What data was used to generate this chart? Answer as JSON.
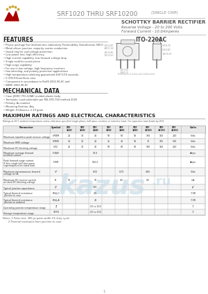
{
  "title_main": "SRF1020 THRU SRF10200",
  "title_sub": "(SINGLE CHIP)",
  "subtitle1": "SCHOTTKY BARRIER RECTIFIER",
  "subtitle2": "Reverse Voltage - 20 to 200 Volts",
  "subtitle3": "Forward Current - 10.0Amperes",
  "package": "ITO-220AC",
  "features_title": "FEATURES",
  "features": [
    "Plastic package has Underwriters Laboratory Flammability Classification 94V-0",
    "Metal silicon junction ,majority carrier conduction",
    "Guard ring for overvoltage protection",
    "Low power loss, high efficiency",
    "High current capability ,low forward voltage drop",
    "Single rectifier construction",
    "High surge capability",
    "For use in low voltage ,high frequency inverters,",
    "free wheeling, and polarity protection applications",
    "High temperature soldering guaranteed 260°C/10 seconds,",
    "0.375(9.5mm)from case",
    "Component in accordance to RoHS 2002-95-EC and",
    "WEEE 2002-96-EC"
  ],
  "mechanical_title": "MECHANICAL DATA",
  "mechanical": [
    "Case: JEDEC ITO-220AC molded plastic body",
    "Terminals: Lead solderable per MIL-STD-750 method 2026",
    "Polarity: As marked",
    "Mounting Position: Any",
    "Weight: 0.08ounce, 2.19 gram"
  ],
  "max_ratings_title": "MAXIMUM RATINGS AND ELECTRICAL CHARACTERISTICS",
  "ratings_note": "Ratings at 25°C ambient temperature unless otherwise specified (single phase, half wave, resistive or inductive load). For capacitive load derate by 20%.",
  "table_col_labels": [
    "SRF\n1020",
    "SRF\n1030",
    "SRF\n1040",
    "SRF\n1050",
    "SRF\n1060",
    "SRF\n1080",
    "SRF\n10100",
    "SRF\n10150",
    "SRF\n10200"
  ],
  "table_rows": [
    [
      "Maximum repetitive peak reverse voltage",
      "VRRM",
      "20",
      "30",
      "40",
      "50",
      "60",
      "80",
      "100",
      "150",
      "200",
      "Volts"
    ],
    [
      "Maximum RMS voltage",
      "VRMS",
      "14",
      "21",
      "28",
      "35",
      "42",
      "56",
      "70",
      "105",
      "140",
      "Volts"
    ],
    [
      "Maximum DC blocking voltage",
      "VDC",
      "20",
      "30",
      "40",
      "50",
      "60",
      "80",
      "100",
      "150",
      "200",
      "Volts"
    ],
    [
      "Maximum average forward\nrectified current",
      "IF(AV)",
      "",
      "",
      "10.0",
      "",
      "",
      "",
      "",
      "",
      "",
      "Amps"
    ],
    [
      "Peak forward surge current\n8.3ms single half sine-wave\nsuperimposed on rated load",
      "IFSM",
      "",
      "",
      "150.0",
      "",
      "",
      "",
      "",
      "",
      "",
      "Amps"
    ],
    [
      "Maximum instantaneous forward\nvoltage at 5A",
      "VF",
      "",
      "",
      "0.55",
      "",
      "0.70",
      "",
      "0.85",
      "",
      "",
      "Volts"
    ],
    [
      "Maximum DC reverse current\nat rated DC blocking voltage",
      "IR",
      "10",
      "",
      "10",
      "",
      "0.5",
      "",
      "0.5",
      "",
      "",
      "mA"
    ],
    [
      "Typical junction capacitance",
      "CJ",
      "",
      "",
      "300",
      "",
      "",
      "",
      "",
      "",
      "",
      "pF"
    ],
    [
      "Typical thermal resistance\njunction to case",
      "RthJ-C",
      "",
      "",
      "2.5",
      "",
      "",
      "",
      "",
      "",
      "",
      "°C/W"
    ],
    [
      "Typical thermal resistance\njunction to ambient",
      "RthJ-A",
      "",
      "",
      "40",
      "",
      "",
      "",
      "",
      "",
      "",
      "°C/W"
    ],
    [
      "Operating junction temperature range",
      "TJ",
      "",
      "",
      "-55 to 150",
      "",
      "",
      "",
      "",
      "",
      "",
      "°C"
    ],
    [
      "Storage temperature range",
      "TSTG",
      "",
      "",
      "-55 to 150",
      "",
      "",
      "",
      "",
      "",
      "",
      "°C"
    ]
  ],
  "notes": [
    "Notes: 1.Pulse test: 300 μs pulse width 1% duty cycle",
    "       2.Thermal resistance from junction to case"
  ],
  "bg_color": "#ffffff",
  "text_color": "#333333",
  "title_gray": "#888888",
  "subtitle_gray": "#666666",
  "logo_red": "#aa0000",
  "logo_gold": "#ccaa33",
  "watermark_color": "#c8dde8",
  "table_header_bg": "#e8e8e8",
  "table_line": "#aaaaaa",
  "section_title_color": "#222222",
  "dim_line_color": "#777777"
}
